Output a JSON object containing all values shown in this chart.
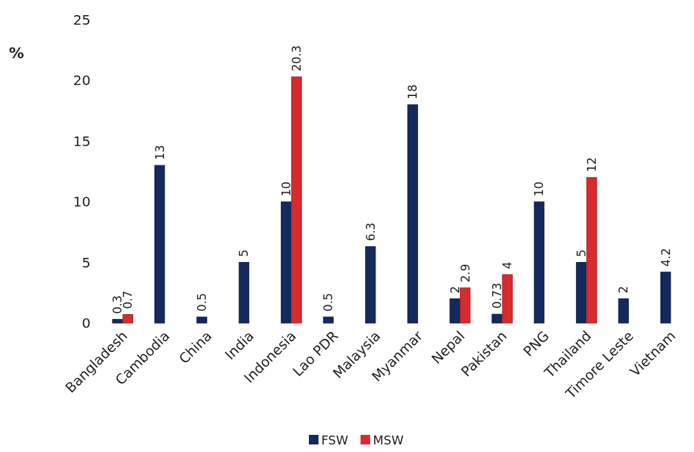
{
  "chart_data": {
    "type": "bar",
    "ylabel": "%",
    "categories": [
      "Bangladesh",
      "Cambodia",
      "China",
      "India",
      "Indonesia",
      "Lao PDR",
      "Malaysia",
      "Myanmar",
      "Nepal",
      "Pakistan",
      "PNG",
      "Thailand",
      "Timore Leste",
      "Vietnam"
    ],
    "series": [
      {
        "name": "FSW",
        "color": "#14295e",
        "values": [
          0.3,
          13,
          0.5,
          5,
          10,
          0.5,
          6.3,
          18,
          2,
          0.73,
          10,
          5,
          2,
          4.2
        ]
      },
      {
        "name": "MSW",
        "color": "#d92a2e",
        "values": [
          0.7,
          null,
          null,
          null,
          20.3,
          null,
          null,
          null,
          2.9,
          4,
          null,
          12,
          null,
          null
        ]
      }
    ],
    "ylim": [
      0,
      25
    ],
    "yticks": [
      0,
      5,
      10,
      15,
      20,
      25
    ],
    "data_labels": true,
    "legend": "bottom"
  }
}
